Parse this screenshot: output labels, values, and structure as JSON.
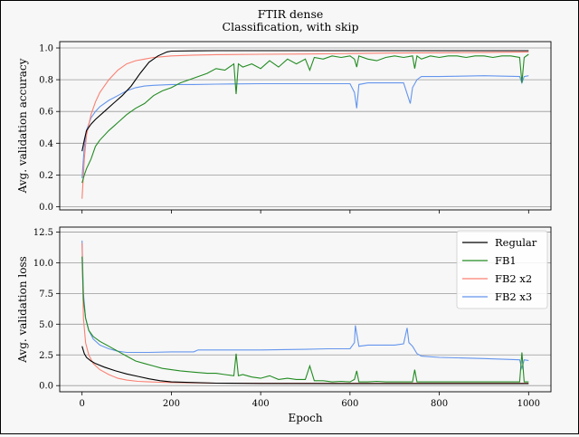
{
  "figure": {
    "title_line1": "FTIR dense",
    "title_line2": "Classification, with skip"
  },
  "colors": {
    "Regular": "#000000",
    "FB1": "#228B22",
    "FB2 x2": "#FA8072",
    "FB2 x3": "#6495ED",
    "grid": "#999999"
  },
  "chart_data": [
    {
      "type": "line",
      "ylabel": "Avg. validation accuracy",
      "xlabel": "",
      "xlim": [
        -50,
        1050
      ],
      "ylim": [
        -0.02,
        1.04
      ],
      "xticks": [
        0,
        200,
        400,
        600,
        800,
        1000
      ],
      "yticks": [
        "0.0",
        "0.2",
        "0.4",
        "0.6",
        "0.8",
        "1.0"
      ],
      "grid": "horizontal",
      "series": [
        {
          "name": "Regular",
          "x": [
            0,
            5,
            10,
            20,
            30,
            50,
            70,
            90,
            110,
            130,
            150,
            170,
            190,
            200,
            250,
            300,
            400,
            500,
            600,
            700,
            800,
            900,
            1000
          ],
          "values": [
            0.35,
            0.42,
            0.48,
            0.52,
            0.55,
            0.6,
            0.65,
            0.7,
            0.76,
            0.84,
            0.91,
            0.95,
            0.975,
            0.98,
            0.982,
            0.983,
            0.983,
            0.983,
            0.983,
            0.983,
            0.983,
            0.983,
            0.983
          ]
        },
        {
          "name": "FB1",
          "x": [
            0,
            5,
            10,
            20,
            30,
            40,
            60,
            80,
            100,
            120,
            140,
            160,
            180,
            200,
            220,
            240,
            260,
            280,
            300,
            320,
            340,
            345,
            350,
            360,
            380,
            400,
            420,
            440,
            460,
            480,
            500,
            510,
            520,
            540,
            560,
            580,
            600,
            610,
            615,
            620,
            640,
            660,
            680,
            700,
            720,
            740,
            745,
            750,
            760,
            780,
            800,
            820,
            840,
            860,
            880,
            900,
            920,
            940,
            960,
            980,
            985,
            990,
            1000
          ],
          "values": [
            0.15,
            0.2,
            0.24,
            0.3,
            0.38,
            0.42,
            0.48,
            0.53,
            0.58,
            0.62,
            0.65,
            0.7,
            0.73,
            0.75,
            0.78,
            0.8,
            0.82,
            0.84,
            0.87,
            0.86,
            0.9,
            0.71,
            0.9,
            0.88,
            0.9,
            0.87,
            0.92,
            0.88,
            0.93,
            0.9,
            0.93,
            0.86,
            0.94,
            0.93,
            0.95,
            0.94,
            0.95,
            0.93,
            0.88,
            0.95,
            0.93,
            0.92,
            0.94,
            0.95,
            0.94,
            0.95,
            0.87,
            0.95,
            0.93,
            0.95,
            0.94,
            0.95,
            0.95,
            0.94,
            0.95,
            0.95,
            0.94,
            0.95,
            0.95,
            0.94,
            0.78,
            0.94,
            0.96
          ]
        },
        {
          "name": "FB2 x2",
          "x": [
            0,
            5,
            10,
            20,
            30,
            40,
            60,
            80,
            100,
            120,
            140,
            160,
            180,
            200,
            250,
            300,
            400,
            500,
            600,
            700,
            800,
            900,
            1000
          ],
          "values": [
            0.05,
            0.3,
            0.45,
            0.58,
            0.66,
            0.72,
            0.8,
            0.86,
            0.9,
            0.92,
            0.93,
            0.94,
            0.945,
            0.95,
            0.955,
            0.958,
            0.96,
            0.962,
            0.965,
            0.968,
            0.97,
            0.972,
            0.975
          ]
        },
        {
          "name": "FB2 x3",
          "x": [
            0,
            5,
            10,
            20,
            30,
            40,
            60,
            80,
            100,
            120,
            140,
            160,
            200,
            250,
            300,
            400,
            500,
            550,
            600,
            610,
            615,
            620,
            640,
            700,
            720,
            735,
            740,
            750,
            760,
            800,
            900,
            980,
            985,
            990,
            1000
          ],
          "values": [
            0.18,
            0.38,
            0.48,
            0.56,
            0.6,
            0.63,
            0.67,
            0.7,
            0.73,
            0.75,
            0.76,
            0.765,
            0.77,
            0.77,
            0.772,
            0.775,
            0.775,
            0.775,
            0.775,
            0.72,
            0.62,
            0.77,
            0.78,
            0.78,
            0.78,
            0.65,
            0.75,
            0.8,
            0.82,
            0.82,
            0.825,
            0.82,
            0.78,
            0.82,
            0.825
          ]
        }
      ]
    },
    {
      "type": "line",
      "ylabel": "Avg. validation loss",
      "xlabel": "Epoch",
      "xlim": [
        -50,
        1050
      ],
      "ylim": [
        -0.5,
        12.9
      ],
      "xticks": [
        0,
        200,
        400,
        600,
        800,
        1000
      ],
      "yticks": [
        "0.0",
        "2.5",
        "5.0",
        "7.5",
        "10.0",
        "12.5"
      ],
      "grid": "horizontal",
      "legend": "top-right",
      "series": [
        {
          "name": "Regular",
          "x": [
            0,
            5,
            10,
            20,
            30,
            50,
            75,
            100,
            125,
            150,
            175,
            200,
            250,
            300,
            400,
            600,
            800,
            1000
          ],
          "values": [
            3.2,
            2.6,
            2.3,
            2.0,
            1.8,
            1.5,
            1.2,
            0.95,
            0.75,
            0.55,
            0.4,
            0.3,
            0.25,
            0.2,
            0.18,
            0.17,
            0.17,
            0.17
          ]
        },
        {
          "name": "FB1",
          "x": [
            0,
            3,
            8,
            15,
            25,
            40,
            60,
            80,
            100,
            120,
            140,
            160,
            180,
            200,
            220,
            250,
            280,
            300,
            320,
            340,
            345,
            350,
            360,
            380,
            400,
            420,
            440,
            460,
            480,
            500,
            510,
            520,
            540,
            560,
            580,
            600,
            610,
            615,
            620,
            640,
            660,
            680,
            700,
            720,
            740,
            745,
            750,
            760,
            780,
            800,
            820,
            840,
            860,
            900,
            940,
            960,
            980,
            985,
            990,
            1000
          ],
          "values": [
            10.5,
            7.0,
            5.5,
            4.5,
            4.0,
            3.6,
            3.2,
            2.8,
            2.4,
            2.0,
            1.8,
            1.6,
            1.4,
            1.3,
            1.2,
            1.1,
            1.0,
            1.0,
            0.9,
            0.8,
            2.6,
            0.8,
            0.9,
            0.7,
            0.6,
            0.8,
            0.5,
            0.6,
            0.5,
            0.5,
            1.6,
            0.4,
            0.4,
            0.3,
            0.35,
            0.3,
            0.5,
            1.2,
            0.3,
            0.3,
            0.35,
            0.3,
            0.3,
            0.3,
            0.3,
            1.3,
            0.3,
            0.3,
            0.3,
            0.3,
            0.3,
            0.3,
            0.3,
            0.3,
            0.3,
            0.3,
            0.3,
            2.7,
            0.3,
            0.3
          ]
        },
        {
          "name": "FB2 x2",
          "x": [
            0,
            3,
            8,
            15,
            25,
            40,
            60,
            80,
            100,
            125,
            150,
            175,
            200,
            250,
            300,
            400,
            600,
            800,
            1000
          ],
          "values": [
            11.6,
            5.5,
            3.5,
            2.5,
            1.8,
            1.3,
            0.9,
            0.6,
            0.45,
            0.35,
            0.3,
            0.27,
            0.25,
            0.22,
            0.2,
            0.2,
            0.2,
            0.2,
            0.2
          ]
        },
        {
          "name": "FB2 x3",
          "x": [
            0,
            3,
            8,
            15,
            25,
            40,
            60,
            80,
            100,
            125,
            150,
            200,
            250,
            260,
            300,
            400,
            500,
            550,
            600,
            610,
            612,
            620,
            640,
            700,
            720,
            728,
            732,
            740,
            750,
            760,
            800,
            900,
            980,
            985,
            990,
            1000
          ],
          "values": [
            11.8,
            7.5,
            5.5,
            4.5,
            3.8,
            3.3,
            3.0,
            2.8,
            2.7,
            2.7,
            2.7,
            2.75,
            2.75,
            2.9,
            2.9,
            2.9,
            2.95,
            3.0,
            3.0,
            3.5,
            4.9,
            3.2,
            3.3,
            3.3,
            3.4,
            4.7,
            3.5,
            3.2,
            2.6,
            2.4,
            2.3,
            2.2,
            2.1,
            1.4,
            2.1,
            2.05
          ]
        }
      ]
    }
  ]
}
